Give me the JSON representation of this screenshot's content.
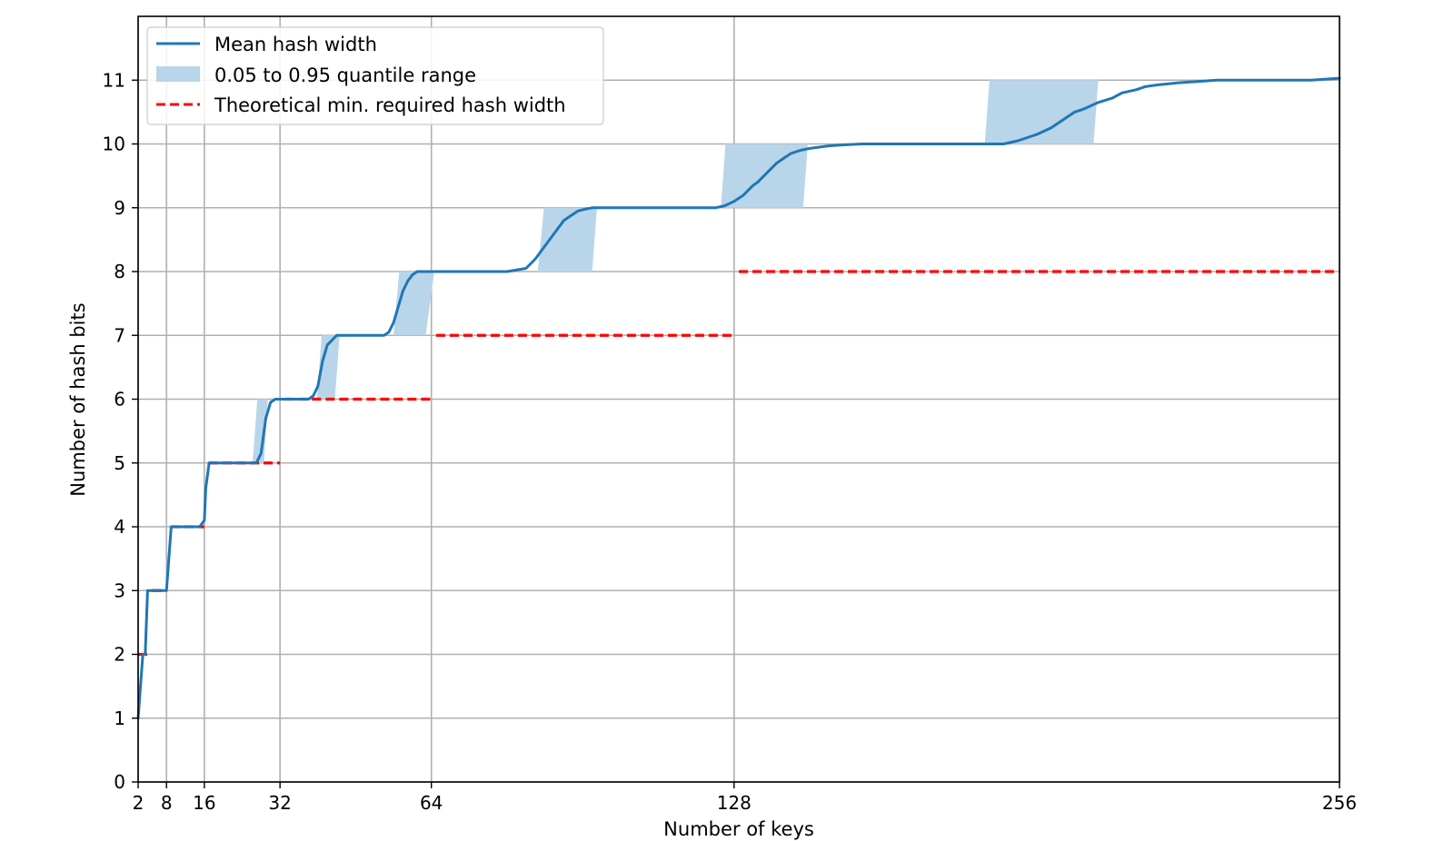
{
  "chart_data": {
    "type": "line",
    "xlabel": "Number of keys",
    "ylabel": "Number of hash bits",
    "xlim": [
      2,
      256
    ],
    "ylim": [
      0,
      12
    ],
    "x_ticks": [
      2,
      8,
      16,
      32,
      64,
      128,
      256
    ],
    "x_tick_labels": [
      "2",
      "8",
      "16",
      "32",
      "64",
      "128",
      "256"
    ],
    "y_ticks": [
      0,
      1,
      2,
      3,
      4,
      5,
      6,
      7,
      8,
      9,
      10,
      11
    ],
    "y_tick_labels": [
      "0",
      "1",
      "2",
      "3",
      "4",
      "5",
      "6",
      "7",
      "8",
      "9",
      "10",
      "11"
    ],
    "grid": true,
    "legend_position": "top-left",
    "legend": {
      "mean": "Mean hash width",
      "band": "0.05 to 0.95 quantile range",
      "theory": "Theoretical min. required hash width"
    },
    "colors": {
      "mean": "#1f77b4",
      "band": "#b9d5ea",
      "theory": "#ff0000",
      "grid": "#b0b0b0"
    },
    "series": [
      {
        "name": "Mean hash width",
        "x": [
          2,
          3,
          3.5,
          4,
          4.5,
          5,
          6,
          7,
          8,
          9,
          10,
          12,
          14,
          15,
          16,
          16.3,
          17,
          20,
          24,
          26,
          27,
          28,
          29,
          30,
          31,
          32,
          34,
          36,
          38,
          39,
          40,
          41,
          42,
          44,
          48,
          52,
          54,
          55,
          56,
          57,
          58,
          59,
          60,
          61,
          62,
          63,
          64,
          66,
          68,
          70,
          72,
          76,
          80,
          84,
          86,
          88,
          90,
          92,
          93,
          94,
          95,
          96,
          98,
          100,
          104,
          108,
          112,
          118,
          124,
          126,
          128,
          130,
          132,
          133,
          135,
          137,
          139,
          140,
          142,
          144,
          146,
          148,
          150,
          155,
          165,
          170,
          175,
          180,
          185,
          188,
          190,
          192,
          195,
          198,
          200,
          202,
          205,
          208,
          210,
          213,
          215,
          218,
          222,
          226,
          230,
          240,
          250,
          256
        ],
        "y": [
          1.0,
          2.0,
          2.0,
          3.0,
          3.0,
          3.0,
          3.0,
          3.0,
          3.0,
          4.0,
          4.0,
          4.0,
          4.0,
          4.0,
          4.1,
          4.6,
          5.0,
          5.0,
          5.0,
          5.0,
          5.0,
          5.15,
          5.7,
          5.95,
          6.0,
          6.0,
          6.0,
          6.0,
          6.0,
          6.05,
          6.2,
          6.6,
          6.85,
          7.0,
          7.0,
          7.0,
          7.0,
          7.05,
          7.2,
          7.45,
          7.7,
          7.85,
          7.95,
          8.0,
          8.0,
          8.0,
          8.0,
          8.0,
          8.0,
          8.0,
          8.0,
          8.0,
          8.0,
          8.05,
          8.2,
          8.4,
          8.6,
          8.8,
          8.85,
          8.9,
          8.95,
          8.97,
          9.0,
          9.0,
          9.0,
          9.0,
          9.0,
          9.0,
          9.0,
          9.03,
          9.1,
          9.2,
          9.35,
          9.4,
          9.55,
          9.7,
          9.8,
          9.85,
          9.9,
          9.93,
          9.95,
          9.97,
          9.98,
          10.0,
          10.0,
          10.0,
          10.0,
          10.0,
          10.0,
          10.05,
          10.1,
          10.15,
          10.25,
          10.4,
          10.5,
          10.55,
          10.65,
          10.72,
          10.8,
          10.85,
          10.9,
          10.93,
          10.96,
          10.98,
          11.0,
          11.0,
          11.0,
          11.03
        ]
      },
      {
        "name": "0.05 to 0.95 quantile range",
        "bands": [
          {
            "x_start_low": 26.2,
            "x_start_high": 27.2,
            "x_end_low": 28.6,
            "x_end_high": 29.4,
            "y_low": 5,
            "y_high": 6
          },
          {
            "x_start_low": 39.8,
            "x_start_high": 40.8,
            "x_end_low": 43.6,
            "x_end_high": 44.6,
            "y_low": 6,
            "y_high": 7
          },
          {
            "x_start_low": 56.0,
            "x_start_high": 57.2,
            "x_end_low": 62.8,
            "x_end_high": 64.6,
            "y_low": 7,
            "y_high": 8
          },
          {
            "x_start_low": 86.5,
            "x_start_high": 87.8,
            "x_end_low": 98.0,
            "x_end_high": 99.0,
            "y_low": 8,
            "y_high": 9
          },
          {
            "x_start_low": 125.2,
            "x_start_high": 126.2,
            "x_end_low": 142.6,
            "x_end_high": 143.6,
            "y_low": 9,
            "y_high": 10
          },
          {
            "x_start_low": 181.0,
            "x_start_high": 182.0,
            "x_end_low": 204.0,
            "x_end_high": 205.0,
            "y_low": 10,
            "y_high": 11
          }
        ]
      },
      {
        "name": "Theoretical min. required hash width",
        "segments": [
          {
            "x": [
              2,
              4
            ],
            "y": 2
          },
          {
            "x": [
              5,
              8
            ],
            "y": 3
          },
          {
            "x": [
              9,
              16
            ],
            "y": 4
          },
          {
            "x": [
              17,
              32
            ],
            "y": 5
          },
          {
            "x": [
              33,
              64
            ],
            "y": 6
          },
          {
            "x": [
              65,
              128
            ],
            "y": 7
          },
          {
            "x": [
              129,
              256
            ],
            "y": 8
          }
        ]
      }
    ]
  }
}
